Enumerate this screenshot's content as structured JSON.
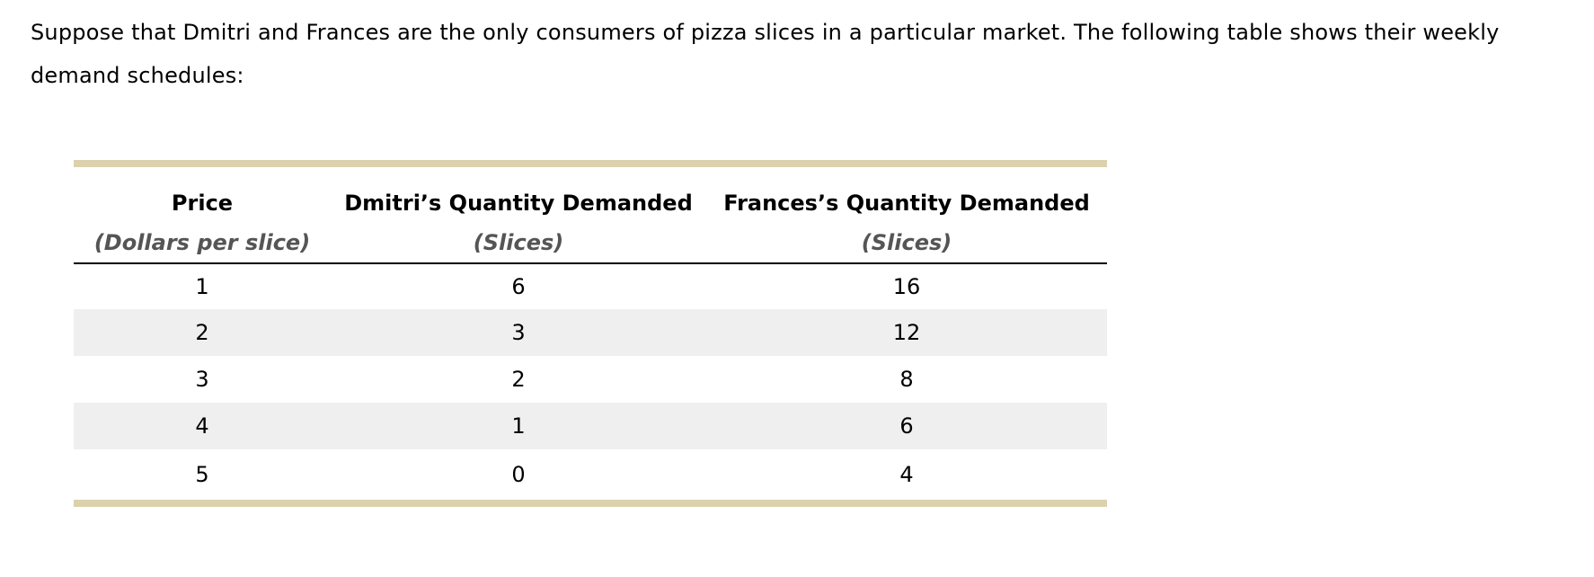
{
  "intro": "Suppose that Dmitri and Frances are the only consumers of pizza slices in a particular market. The following table shows their weekly demand schedules:",
  "table": {
    "headers": [
      {
        "title": "Price",
        "unit": "(Dollars per slice)"
      },
      {
        "title": "Dmitri’s Quantity Demanded",
        "unit": "(Slices)"
      },
      {
        "title": "Frances’s Quantity Demanded",
        "unit": "(Slices)"
      }
    ],
    "rows": [
      [
        "1",
        "6",
        "16"
      ],
      [
        "2",
        "3",
        "12"
      ],
      [
        "3",
        "2",
        "8"
      ],
      [
        "4",
        "1",
        "6"
      ],
      [
        "5",
        "0",
        "4"
      ]
    ]
  },
  "colors": {
    "rule": "#dbd1ac",
    "stripe": "#efefef",
    "unit_text": "#555555"
  }
}
